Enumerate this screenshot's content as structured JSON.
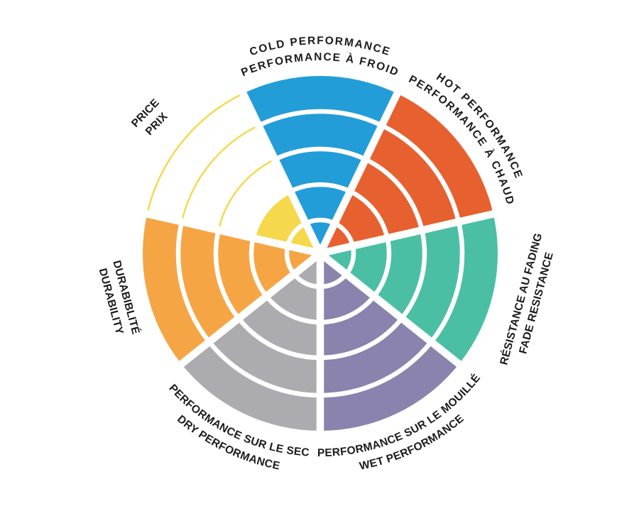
{
  "chart_data": {
    "type": "polar-ring-rating",
    "description": "Seven-sector radial wheel chart rating product attributes on 5 concentric rings; all sectors filled to 5 of 5 except Price filled to 2 of 5 with remaining rings shown as outline arcs.",
    "rings_max": 5,
    "grid": "concentric-rings-with-white-dividers",
    "legend_position": "labels-around-wheel",
    "background": "#ffffff",
    "divider_color": "#ffffff",
    "text_color": "#1b1b1d",
    "categories": [
      {
        "id": "cold-performance",
        "label_en": "COLD PERFORMANCE",
        "label_fr": "PERFORMANCE À FROID",
        "value": 5,
        "color": "#239DD8"
      },
      {
        "id": "hot-performance",
        "label_en": "HOT PERFORMANCE",
        "label_fr": "PERFORMANCE À CHAUD",
        "value": 5,
        "color": "#E7602F"
      },
      {
        "id": "fade-resistance",
        "label_en": "FADE RESISTANCE",
        "label_fr": "RÉSISTANCE AU FADING",
        "value": 5,
        "color": "#4BBFA4"
      },
      {
        "id": "wet-performance",
        "label_en": "WET PERFORMANCE",
        "label_fr": "PERFORMANCE SUR LE MOUILLÉ",
        "value": 5,
        "color": "#8A83AD"
      },
      {
        "id": "dry-performance",
        "label_en": "DRY PERFORMANCE",
        "label_fr": "PERFORMANCE SUR LE SEC",
        "value": 5,
        "color": "#ACABAF"
      },
      {
        "id": "durability",
        "label_en": "DURABILITY",
        "label_fr": "DURABIBLITÉ",
        "value": 5,
        "color": "#F6A544"
      },
      {
        "id": "price",
        "label_en": "PRICE",
        "label_fr": "PRIX",
        "value": 2,
        "color": "#F5D84B",
        "empty_ring_style": "outline-arc"
      }
    ]
  }
}
